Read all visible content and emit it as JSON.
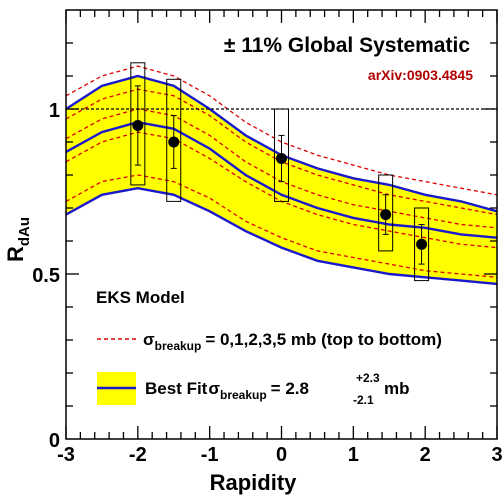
{
  "chart_data": {
    "type": "line",
    "xlabel": "Rapidity",
    "ylabel_main": "R",
    "ylabel_sub": "dAu",
    "xlim": [
      -3,
      3
    ],
    "ylim": [
      0,
      1.3
    ],
    "xticks": [
      -3,
      -2,
      -1,
      0,
      1,
      2,
      3
    ],
    "xtick_labels": [
      "-3",
      "-2",
      "-1",
      "0",
      "1",
      "2",
      "3"
    ],
    "yticks": [
      0,
      0.5,
      1
    ],
    "ytick_labels": [
      "0",
      "0.5",
      "1"
    ],
    "reference_line_y": 1.0,
    "annotations": {
      "global_systematic": "± 11% Global Systematic",
      "reference": "arXiv:0903.4845",
      "model": "EKS Model"
    },
    "legend": {
      "dashed_prefix": "σ",
      "dashed_sub": "breakup",
      "dashed_suffix": "= 0,1,2,3,5 mb (top to bottom)",
      "fit_prefix": "Best Fit",
      "fit_sigma": "σ",
      "fit_sub": "breakup",
      "fit_value": "= 2.8",
      "fit_plus": "+2.3",
      "fit_minus": "-2.1",
      "fit_unit": "mb"
    },
    "colors": {
      "band_fill": "#ffff00",
      "fit_line": "#1a1acc",
      "dashed_lines": "#dd0000",
      "markers": "#000000",
      "reference_color": "#b00000"
    },
    "x": [
      -3,
      -2.5,
      -2,
      -1.5,
      -1,
      -0.5,
      0,
      0.5,
      1,
      1.5,
      2,
      2.5,
      3
    ],
    "band_upper": [
      1.0,
      1.07,
      1.1,
      1.07,
      1.0,
      0.92,
      0.86,
      0.82,
      0.79,
      0.77,
      0.74,
      0.72,
      0.69
    ],
    "best_fit": [
      0.87,
      0.93,
      0.96,
      0.94,
      0.88,
      0.8,
      0.74,
      0.7,
      0.67,
      0.65,
      0.64,
      0.62,
      0.61
    ],
    "band_lower": [
      0.68,
      0.74,
      0.76,
      0.74,
      0.69,
      0.63,
      0.58,
      0.54,
      0.52,
      0.5,
      0.49,
      0.48,
      0.47
    ],
    "dashed_series": [
      {
        "name": "0 mb",
        "values": [
          1.04,
          1.1,
          1.13,
          1.1,
          1.04,
          0.96,
          0.9,
          0.86,
          0.83,
          0.8,
          0.78,
          0.76,
          0.74
        ]
      },
      {
        "name": "1 mb",
        "values": [
          0.97,
          1.03,
          1.06,
          1.04,
          0.98,
          0.9,
          0.84,
          0.8,
          0.77,
          0.74,
          0.72,
          0.7,
          0.68
        ]
      },
      {
        "name": "2 mb",
        "values": [
          0.91,
          0.97,
          1.0,
          0.98,
          0.92,
          0.84,
          0.78,
          0.74,
          0.71,
          0.69,
          0.67,
          0.65,
          0.64
        ]
      },
      {
        "name": "3 mb",
        "values": [
          0.84,
          0.9,
          0.93,
          0.91,
          0.85,
          0.78,
          0.72,
          0.68,
          0.65,
          0.63,
          0.61,
          0.59,
          0.58
        ]
      },
      {
        "name": "5 mb",
        "values": [
          0.72,
          0.78,
          0.8,
          0.78,
          0.73,
          0.66,
          0.61,
          0.57,
          0.55,
          0.53,
          0.51,
          0.5,
          0.49
        ]
      }
    ],
    "data_points": [
      {
        "x": -2.0,
        "y": 0.95,
        "stat_err": 0.12,
        "sys_low": 0.77,
        "sys_high": 1.14
      },
      {
        "x": -1.5,
        "y": 0.9,
        "stat_err": 0.08,
        "sys_low": 0.72,
        "sys_high": 1.09
      },
      {
        "x": 0.0,
        "y": 0.85,
        "stat_err": 0.07,
        "sys_low": 0.72,
        "sys_high": 1.0
      },
      {
        "x": 1.45,
        "y": 0.68,
        "stat_err": 0.06,
        "sys_low": 0.57,
        "sys_high": 0.8
      },
      {
        "x": 1.95,
        "y": 0.59,
        "stat_err": 0.06,
        "sys_low": 0.48,
        "sys_high": 0.7
      }
    ]
  }
}
